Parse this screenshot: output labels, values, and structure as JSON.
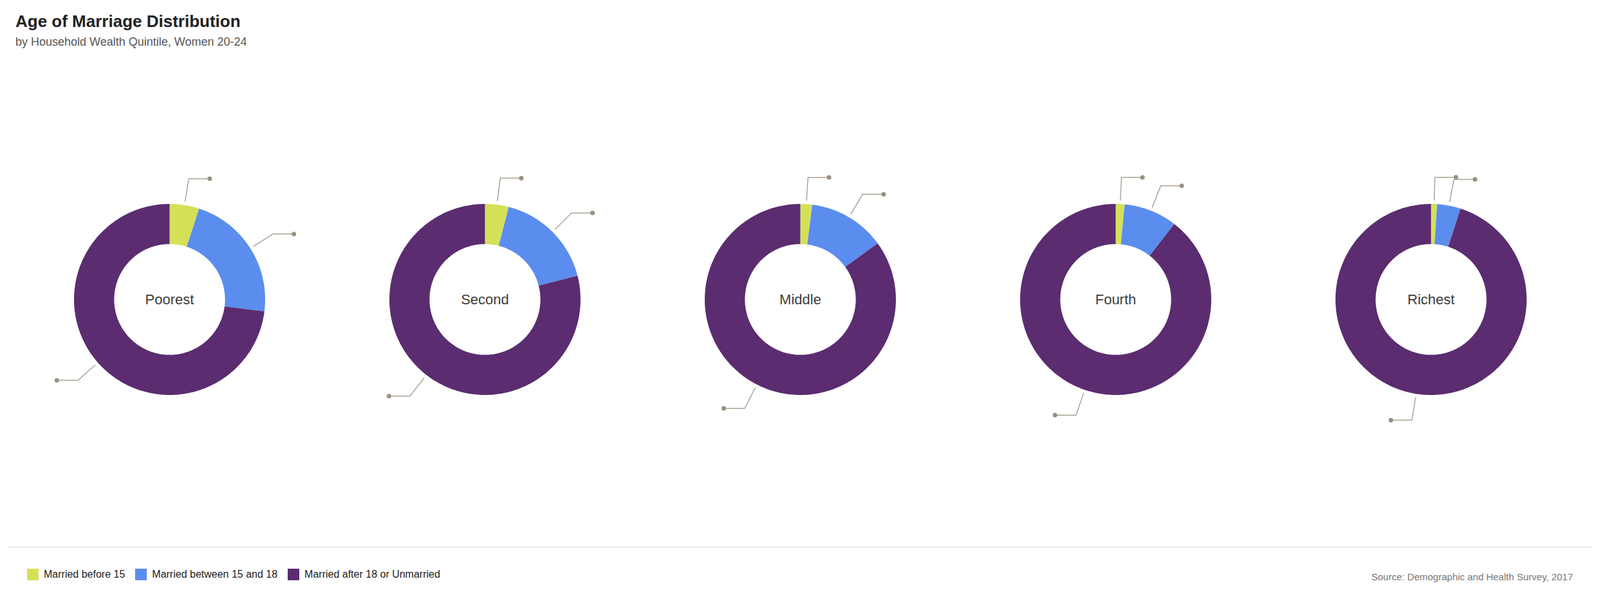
{
  "chart_data": {
    "type": "donut",
    "title": "Age of Marriage Distribution",
    "subtitle": "by Household Wealth Quintile, Women 20-24",
    "source": "Source: Demographic and Health Survey, 2017",
    "categories": [
      "Poorest",
      "Second",
      "Middle",
      "Fourth",
      "Richest"
    ],
    "series": [
      {
        "name": "Married before 15",
        "color": "#d4e157",
        "values": [
          5,
          4,
          2,
          1.5,
          1
        ]
      },
      {
        "name": "Married between 15 and 18",
        "color": "#5b8def",
        "values": [
          22,
          17,
          13,
          9,
          4
        ]
      },
      {
        "name": "Married after 18 or Unmarried",
        "color": "#5b2c6f",
        "values": [
          73,
          79,
          85,
          89.5,
          95
        ]
      }
    ],
    "legend": "lower left"
  }
}
